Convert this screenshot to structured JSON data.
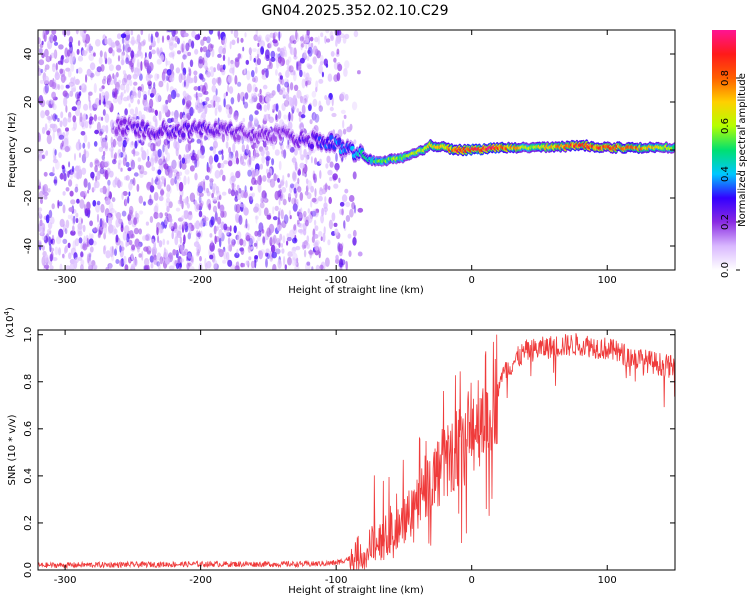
{
  "figure_title": "GN04.2025.352.02.10.C29",
  "chart_data": [
    {
      "type": "heatmap",
      "name": "spectrogram",
      "xlabel": "Height of straight line (km)",
      "ylabel": "Frequency (Hz)",
      "xlim": [
        -320,
        150
      ],
      "ylim": [
        -50,
        50
      ],
      "xticks": [
        -300,
        -200,
        -100,
        0,
        100
      ],
      "yticks": [
        -40,
        -20,
        0,
        20,
        40
      ],
      "colorbar": {
        "label": "Normalized spectral amplitude",
        "range": [
          0,
          1
        ],
        "ticks": [
          0.0,
          0.2,
          0.4,
          0.6,
          0.8
        ],
        "tick_labels": [
          "0.0",
          "0.2",
          "0.4",
          "0.6",
          "0.8"
        ],
        "colormap": [
          "#ffffff",
          "#d9b8ff",
          "#8a2be2",
          "#3300ff",
          "#00c8ff",
          "#00e070",
          "#b4ff00",
          "#ffd000",
          "#ff6000",
          "#ff1a1a",
          "#ff1493"
        ]
      },
      "ridge": {
        "x": [
          -260,
          -230,
          -200,
          -170,
          -140,
          -120,
          -100,
          -90,
          -80,
          -70,
          -60,
          -50,
          -40,
          -30,
          -20,
          -10,
          0,
          20,
          40,
          60,
          80,
          100,
          120,
          150
        ],
        "y": [
          10,
          8,
          9,
          7,
          6,
          4,
          3,
          0,
          -3,
          -5,
          -4,
          -3,
          -1,
          2,
          1,
          0,
          0,
          1,
          1,
          1,
          2,
          1,
          1,
          1
        ],
        "amplitude": [
          0.2,
          0.25,
          0.25,
          0.2,
          0.2,
          0.25,
          0.35,
          0.35,
          0.45,
          0.5,
          0.55,
          0.55,
          0.6,
          0.65,
          0.7,
          0.85,
          0.9,
          0.85,
          0.6,
          0.7,
          0.85,
          0.8,
          0.75,
          0.55
        ]
      }
    },
    {
      "type": "line",
      "name": "snr",
      "xlabel": "Height of straight line (km)",
      "ylabel": "SNR (10 * v/v)",
      "scale_label_base": "(x10",
      "scale_label_exp": "4",
      "scale_label_end": ")",
      "xlim": [
        -320,
        150
      ],
      "ylim": [
        0,
        1.02
      ],
      "xticks": [
        -300,
        -200,
        -100,
        0,
        100
      ],
      "yticks": [
        0.0,
        0.2,
        0.4,
        0.6,
        0.8,
        1.0
      ],
      "ytick_labels": [
        "0.0",
        "0.2",
        "0.4",
        "0.6",
        "0.8",
        "1.0"
      ],
      "color": "#ef3b3b",
      "envelope": {
        "x": [
          -320,
          -200,
          -120,
          -100,
          -90,
          -80,
          -70,
          -60,
          -50,
          -40,
          -30,
          -20,
          -10,
          0,
          10,
          20,
          30,
          40,
          60,
          80,
          100,
          120,
          150
        ],
        "y": [
          0.02,
          0.025,
          0.025,
          0.03,
          0.05,
          0.08,
          0.12,
          0.16,
          0.22,
          0.3,
          0.38,
          0.45,
          0.52,
          0.6,
          0.7,
          0.8,
          0.88,
          0.93,
          0.95,
          0.96,
          0.94,
          0.9,
          0.86
        ]
      }
    }
  ]
}
